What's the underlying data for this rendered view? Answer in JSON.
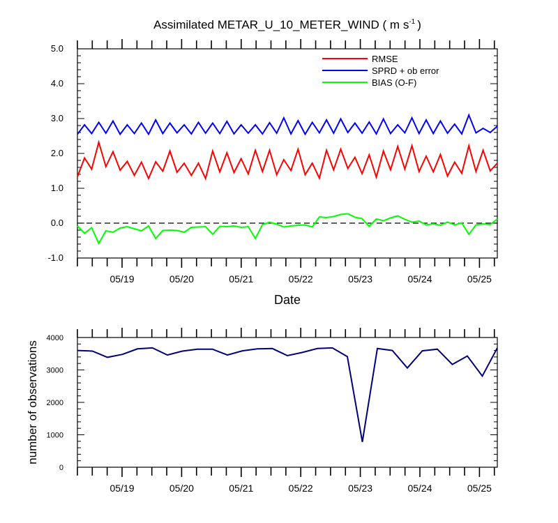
{
  "chart_data": [
    {
      "type": "line",
      "title": "Assimilated METAR_U_10_METER_WIND",
      "title_units": "( m s",
      "title_units_exp": "-1",
      "title_units_close": ")",
      "xlabel": "Date",
      "ylabel": "",
      "x_tick_labels": [
        "05/19",
        "05/20",
        "05/21",
        "05/22",
        "05/23",
        "05/24",
        "05/25"
      ],
      "ylim": [
        -1.0,
        5.0
      ],
      "y_tick_labels": [
        "-1.0",
        "0.0",
        "1.0",
        "2.0",
        "3.0",
        "4.0",
        "5.0"
      ],
      "zero_line": {
        "style": "dashed",
        "value": 0.0
      },
      "legend_position": "top-right",
      "series": [
        {
          "name": "RMSE",
          "color": "#ff0000",
          "values": [
            1.33,
            1.87,
            1.55,
            2.32,
            1.62,
            2.05,
            1.52,
            1.77,
            1.37,
            1.75,
            1.28,
            1.76,
            1.49,
            2.07,
            1.46,
            1.72,
            1.37,
            1.72,
            1.28,
            2.07,
            1.47,
            2.02,
            1.45,
            1.85,
            1.41,
            2.09,
            1.48,
            2.09,
            1.39,
            1.82,
            1.51,
            2.12,
            1.39,
            1.72,
            1.29,
            2.09,
            1.53,
            2.12,
            1.57,
            1.89,
            1.42,
            1.96,
            1.32,
            2.07,
            1.53,
            2.2,
            1.55,
            2.22,
            1.48,
            1.92,
            1.47,
            1.97,
            1.35,
            1.75,
            1.43,
            2.22,
            1.48,
            2.09,
            1.5,
            1.72
          ]
        },
        {
          "name": "SPRD + ob error",
          "color": "#0000ff",
          "values": [
            2.55,
            2.82,
            2.57,
            2.89,
            2.58,
            2.93,
            2.55,
            2.82,
            2.57,
            2.87,
            2.55,
            2.96,
            2.57,
            2.87,
            2.59,
            2.82,
            2.56,
            2.89,
            2.58,
            2.87,
            2.57,
            2.92,
            2.56,
            2.82,
            2.58,
            2.82,
            2.56,
            2.88,
            2.58,
            3.02,
            2.56,
            2.94,
            2.55,
            2.89,
            2.59,
            2.96,
            2.58,
            2.99,
            2.6,
            2.87,
            2.58,
            2.9,
            2.56,
            2.99,
            2.57,
            2.82,
            2.59,
            3.02,
            2.57,
            2.96,
            2.57,
            2.93,
            2.58,
            2.84,
            2.56,
            3.1,
            2.59,
            2.72,
            2.6,
            2.78
          ]
        },
        {
          "name": "BIAS (O-F)",
          "color": "#00ff00",
          "values": [
            -0.08,
            -0.29,
            -0.13,
            -0.58,
            -0.22,
            -0.26,
            -0.14,
            -0.1,
            -0.16,
            -0.22,
            -0.08,
            -0.44,
            -0.21,
            -0.2,
            -0.21,
            -0.26,
            -0.12,
            -0.11,
            -0.1,
            -0.32,
            -0.09,
            -0.1,
            -0.08,
            -0.12,
            -0.1,
            -0.44,
            -0.04,
            0.03,
            -0.03,
            -0.11,
            -0.08,
            -0.06,
            -0.05,
            -0.11,
            0.18,
            0.16,
            0.19,
            0.25,
            0.27,
            0.17,
            0.13,
            -0.09,
            0.12,
            0.07,
            0.15,
            0.21,
            0.11,
            0.03,
            0.06,
            -0.05,
            -0.02,
            -0.06,
            0.03,
            -0.05,
            0.01,
            -0.32,
            -0.05,
            -0.02,
            -0.04,
            0.12
          ]
        }
      ]
    },
    {
      "type": "line",
      "title": "",
      "xlabel": "",
      "ylabel": "number of observations",
      "x_tick_labels": [
        "05/19",
        "05/20",
        "05/21",
        "05/22",
        "05/23",
        "05/24",
        "05/25"
      ],
      "ylim": [
        0,
        4000
      ],
      "y_tick_labels": [
        "0",
        "1000",
        "2000",
        "3000",
        "4000"
      ],
      "series": [
        {
          "color": "#00007a",
          "values": [
            3600,
            3580,
            3390,
            3480,
            3650,
            3680,
            3460,
            3580,
            3640,
            3640,
            3460,
            3590,
            3650,
            3660,
            3440,
            3540,
            3660,
            3680,
            3410,
            780,
            3660,
            3600,
            3060,
            3590,
            3640,
            3170,
            3430,
            2810,
            3680
          ]
        }
      ]
    }
  ]
}
